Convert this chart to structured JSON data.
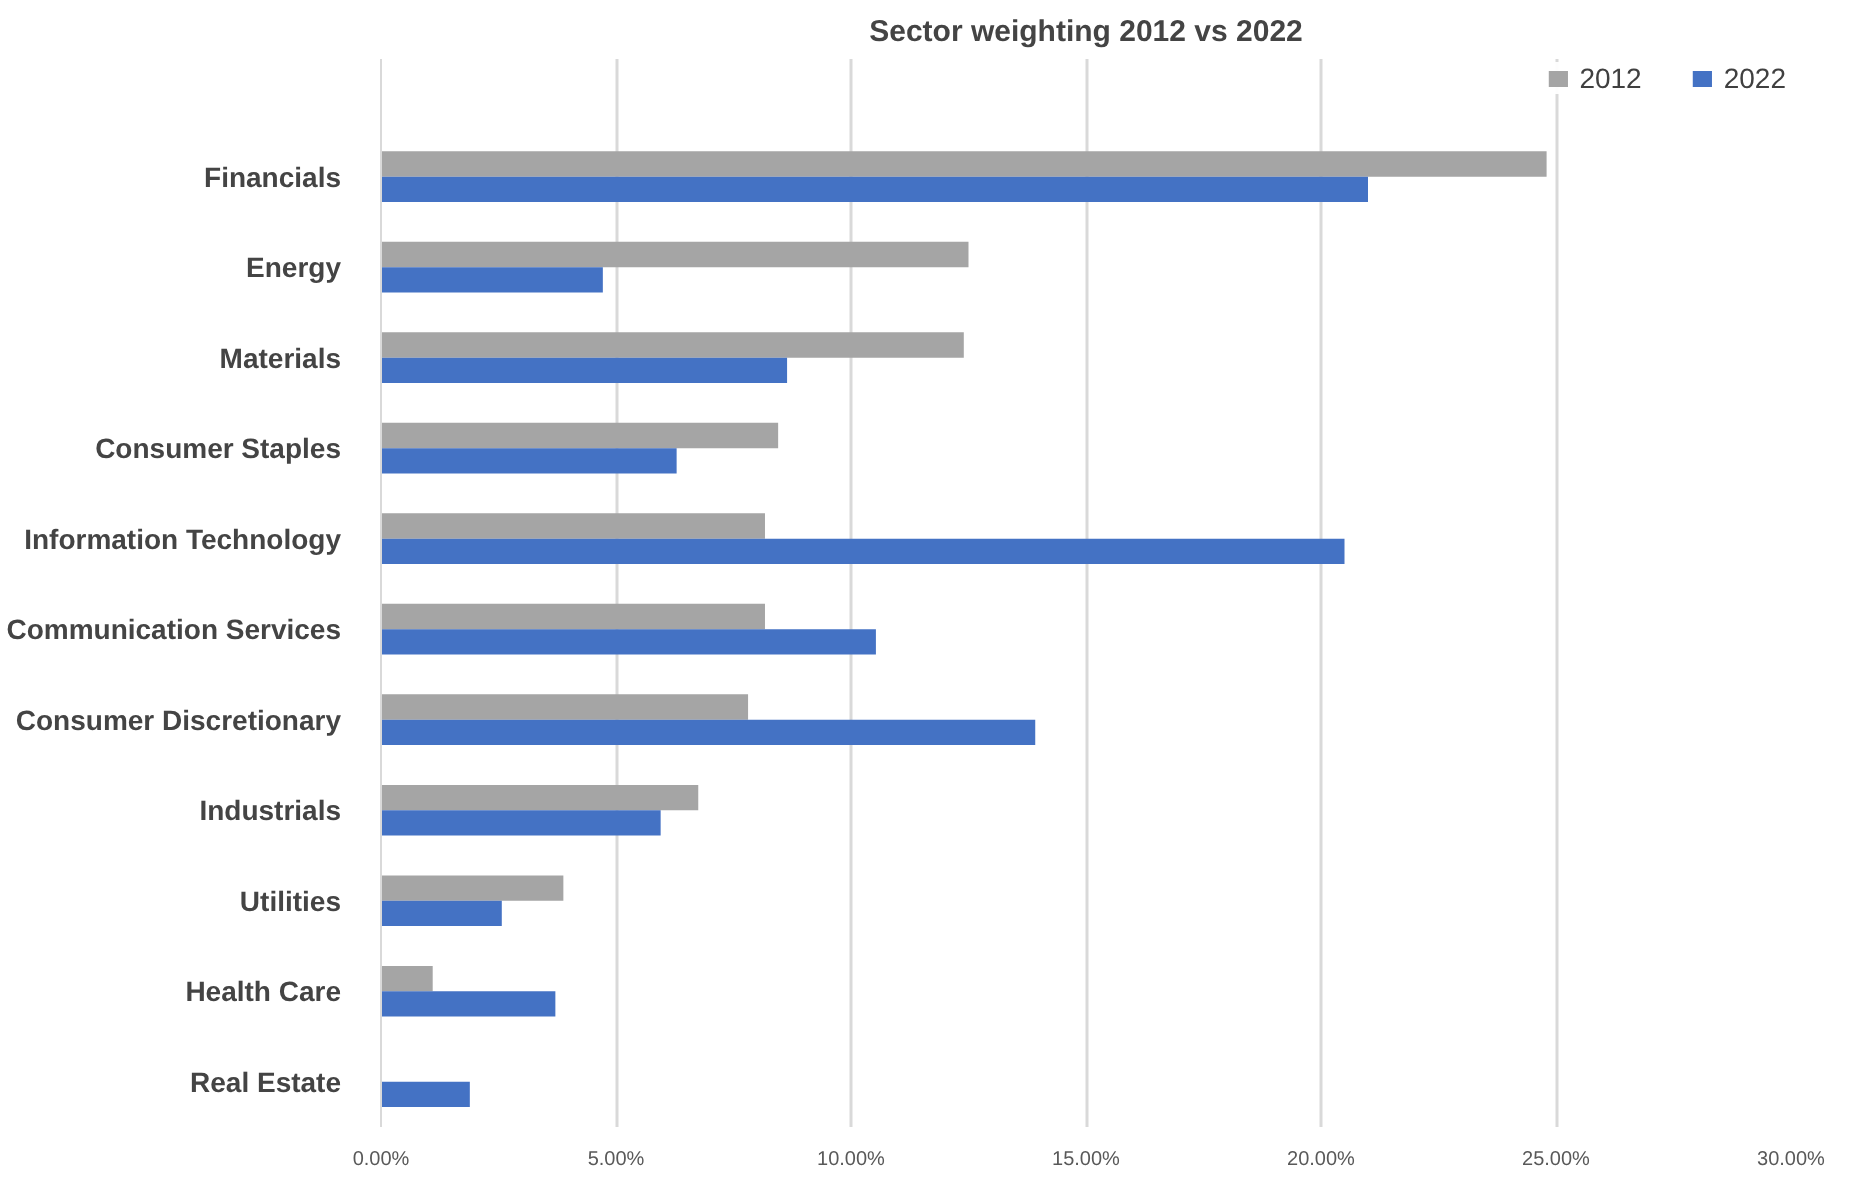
{
  "chart_data": {
    "type": "bar",
    "orientation": "horizontal",
    "title": "Sector weighting 2012 vs 2022",
    "categories": [
      "Financials",
      "Energy",
      "Materials",
      "Consumer Staples",
      "Information Technology",
      "Communication Services",
      "Consumer Discretionary",
      "Industrials",
      "Utilities",
      "Health Care",
      "Real Estate"
    ],
    "series": [
      {
        "name": "2012",
        "color": "#a5a5a5",
        "values": [
          24.8,
          12.5,
          12.4,
          8.45,
          8.17,
          8.17,
          7.81,
          6.75,
          3.88,
          1.1,
          null
        ]
      },
      {
        "name": "2022",
        "color": "#4472c4",
        "values": [
          21.0,
          4.72,
          8.64,
          6.29,
          20.5,
          10.53,
          13.92,
          5.95,
          2.57,
          3.71,
          1.89
        ]
      }
    ],
    "xlim": [
      0,
      30
    ],
    "xticks": [
      {
        "value": 0,
        "label": "0.00%"
      },
      {
        "value": 5,
        "label": "5.00%"
      },
      {
        "value": 10,
        "label": "10.00%"
      },
      {
        "value": 15,
        "label": "15.00%"
      },
      {
        "value": 20,
        "label": "20.00%"
      },
      {
        "value": 25,
        "label": "25.00%"
      },
      {
        "value": 30,
        "label": "30.00%"
      }
    ],
    "grid": "x",
    "legend": "top right"
  }
}
